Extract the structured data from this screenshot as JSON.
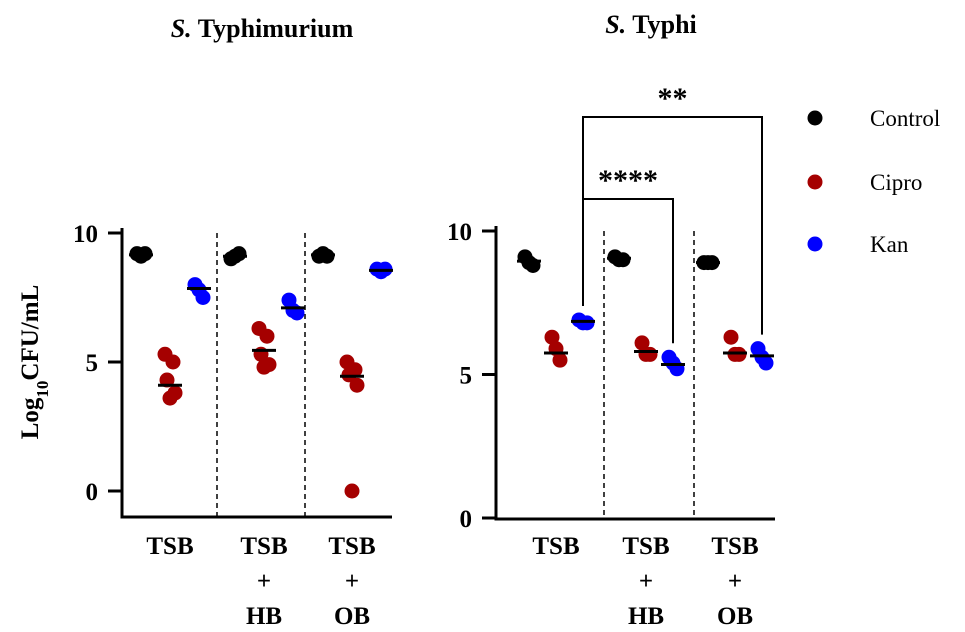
{
  "chart_data": [
    {
      "type": "scatter",
      "title": {
        "italic": "S.",
        "rest": "Typhimurium"
      },
      "ylabel": {
        "base": "Log",
        "sub": "10",
        "rest": "CFU/mL"
      },
      "ylim": [
        0,
        10
      ],
      "yticks": [
        0,
        5,
        10
      ],
      "groups": [
        {
          "label": [
            "TSB"
          ]
        },
        {
          "label": [
            "TSB",
            "+",
            "HB"
          ]
        },
        {
          "label": [
            "TSB",
            "+",
            "OB"
          ]
        }
      ],
      "series": [
        {
          "name": "Control",
          "color": "#000000",
          "values": [
            [
              9.2,
              9.1,
              9.2
            ],
            [
              9.0,
              9.1,
              9.2
            ],
            [
              9.1,
              9.2,
              9.1
            ]
          ],
          "means": [
            9.15,
            9.1,
            9.15
          ]
        },
        {
          "name": "Cipro",
          "color": "#a50000",
          "values": [
            [
              5.3,
              5.0,
              4.3,
              3.8,
              3.6
            ],
            [
              6.3,
              6.0,
              5.3,
              4.9,
              4.8
            ],
            [
              5.0,
              4.7,
              4.5,
              4.1,
              0.0
            ]
          ],
          "means": [
            4.1,
            5.45,
            4.45
          ]
        },
        {
          "name": "Kan",
          "color": "#0000ff",
          "values": [
            [
              8.0,
              7.8,
              7.5
            ],
            [
              7.4,
              7.0,
              6.9
            ],
            [
              8.6,
              8.5,
              8.6
            ]
          ],
          "means": [
            7.85,
            7.1,
            8.55
          ]
        }
      ]
    },
    {
      "type": "scatter",
      "title": {
        "italic": "S.",
        "rest": "Typhi"
      },
      "ylim": [
        0,
        10
      ],
      "yticks": [
        0,
        5,
        10
      ],
      "groups": [
        {
          "label": [
            "TSB"
          ]
        },
        {
          "label": [
            "TSB",
            "+",
            "HB"
          ]
        },
        {
          "label": [
            "TSB",
            "+",
            "OB"
          ]
        }
      ],
      "series": [
        {
          "name": "Control",
          "color": "#000000",
          "values": [
            [
              9.1,
              8.9,
              8.8
            ],
            [
              9.1,
              9.0,
              9.0
            ],
            [
              8.9,
              8.9,
              8.9
            ]
          ],
          "means": [
            8.95,
            9.05,
            8.9
          ]
        },
        {
          "name": "Cipro",
          "color": "#a50000",
          "values": [
            [
              6.3,
              5.9,
              5.5
            ],
            [
              6.1,
              5.7,
              5.7
            ],
            [
              6.3,
              5.7,
              5.7
            ]
          ],
          "means": [
            5.75,
            5.8,
            5.75
          ]
        },
        {
          "name": "Kan",
          "color": "#0000ff",
          "values": [
            [
              6.9,
              6.8,
              6.8
            ],
            [
              5.6,
              5.4,
              5.2
            ],
            [
              5.9,
              5.6,
              5.4
            ]
          ],
          "means": [
            6.85,
            5.35,
            5.65
          ]
        }
      ],
      "annotations": [
        {
          "label": "**",
          "from": {
            "group": 0,
            "series": "Kan"
          },
          "to": {
            "group": 2,
            "series": "Kan"
          }
        },
        {
          "label": "****",
          "from": {
            "group": 0,
            "series": "Kan"
          },
          "to": {
            "group": 1,
            "series": "Kan"
          }
        }
      ]
    }
  ],
  "legend": {
    "position": "right",
    "items": [
      {
        "label": "Control",
        "color": "#000000"
      },
      {
        "label": "Cipro",
        "color": "#a50000"
      },
      {
        "label": "Kan",
        "color": "#0000ff"
      }
    ]
  }
}
